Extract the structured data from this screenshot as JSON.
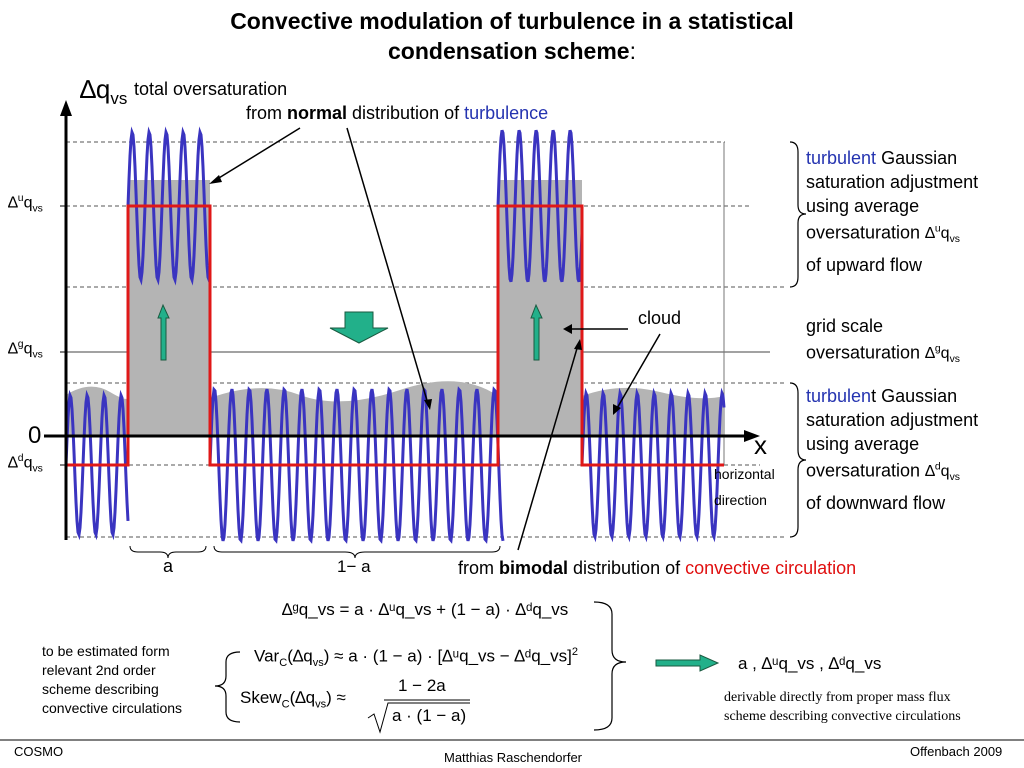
{
  "title_line1": "Convective modulation of turbulence in a statistical",
  "title_line2": "condensation scheme",
  "title_colon": ":",
  "axis": {
    "y_symbol": "∆q",
    "y_sub": "vs",
    "y_caption": "total oversaturation",
    "zero": "0",
    "x": "x",
    "horizontal_line1": "horizontal",
    "horizontal_line2": "direction"
  },
  "ylabels": {
    "u": {
      "sym": "∆",
      "sup": "u",
      "q": "q",
      "sub": "vs"
    },
    "g": {
      "sym": "∆",
      "sup": "g",
      "q": "q",
      "sub": "vs"
    },
    "d": {
      "sym": "∆",
      "sup": "d",
      "q": "q",
      "sub": "vs"
    }
  },
  "normal_note": {
    "from": "from ",
    "bold": "normal",
    "mid": " distribution of ",
    "blue": "turbulence"
  },
  "bimodal_note": {
    "from": "from ",
    "bold": "bimodal",
    "mid": " distribution of ",
    "red": "convective circulation"
  },
  "cloud": "cloud",
  "brace_a": "a",
  "brace_1ma": "1− a",
  "right_upper": {
    "blue": "turbulent",
    "l1": "  Gaussian",
    "l2": "saturation adjustment",
    "l3": "using average",
    "l4": "oversaturation ",
    "l5": "of upward flow"
  },
  "right_mid": {
    "l1": "grid scale",
    "l2": "oversaturation "
  },
  "right_lower": {
    "blue": "turbulen",
    "t": "t",
    "l1": "  Gaussian",
    "l2": "saturation adjustment",
    "l3": "using average",
    "l4": "oversaturation ",
    "l5": "of downward flow"
  },
  "equations": {
    "eq1": "∆ᵍq_vs = a · ∆ᵘq_vs + (1 − a) · ∆ᵈq_vs",
    "eq2_lhs": "Var",
    "eq2_rhs": "≈ a · (1 − a) · [∆ᵘq_vs − ∆ᵈq_vs]",
    "eq2_exp": "2",
    "eq3_lhs": "Skew",
    "eq3_num": "1 − 2a",
    "eq3_den": "a · (1 − a)",
    "sub_c": "C",
    "arg": "(∆q",
    "arg_sub": "vs",
    "arg_close": ")"
  },
  "left_note": [
    "to be estimated form",
    "relevant 2nd order",
    "scheme describing",
    "convective circulations"
  ],
  "result": {
    "text": "a ,   ∆ᵘq_vs ,   ∆ᵈq_vs"
  },
  "derivable": [
    "derivable directly from proper mass flux",
    "scheme describing convective circulations"
  ],
  "footer": {
    "left": "COSMO",
    "center": "Matthias Raschendorfer",
    "right": "Offenbach 2009"
  },
  "colors": {
    "wave": "#3a34c0",
    "box": "#e01818",
    "arrow": "#22b08a",
    "fill": "#b4b4b4",
    "blue_text": "#2433b0",
    "red_text": "#e01010"
  }
}
